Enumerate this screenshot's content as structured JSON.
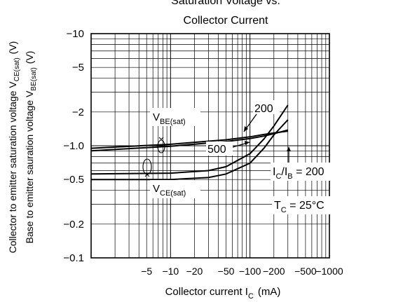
{
  "chart_data": {
    "type": "line",
    "title_line1": "Saturation Voltage vs.",
    "title_line2": "Collector Current",
    "xlabel_main": "Collector current  I",
    "xlabel_sub": "C",
    "xlabel_unit": "(mA)",
    "ylabel_outer": "Collector to emitter saturation voltage  V",
    "ylabel_outer_sub": "CE(sat)",
    "ylabel_outer_unit": "(V)",
    "ylabel_inner": "Base to emitter sauration voltage  V",
    "ylabel_inner_sub": "BE(sat)",
    "ylabel_inner_unit": "(V)",
    "x_scale": "log",
    "y_scale": "log",
    "x_magnitude_range": [
      1,
      1000
    ],
    "y_magnitude_range": [
      0.1,
      10
    ],
    "x_ticks": [
      {
        "v": 5,
        "label": "−5"
      },
      {
        "v": 10,
        "label": "−10"
      },
      {
        "v": 20,
        "label": "−20"
      },
      {
        "v": 50,
        "label": "−50"
      },
      {
        "v": 100,
        "label": "−100"
      },
      {
        "v": 200,
        "label": "−200"
      },
      {
        "v": 500,
        "label": "−500"
      },
      {
        "v": 1000,
        "label": "−1000"
      }
    ],
    "y_ticks": [
      {
        "v": 10,
        "label": "−10"
      },
      {
        "v": 5,
        "label": "−5"
      },
      {
        "v": 2,
        "label": "−2"
      },
      {
        "v": 1,
        "label": "−1.0"
      },
      {
        "v": 0.5,
        "label": "−0.5"
      },
      {
        "v": 0.2,
        "label": "−0.2"
      },
      {
        "v": 0.1,
        "label": "−0.1"
      }
    ],
    "grid": true,
    "series": [
      {
        "group": "VBE(sat)",
        "ratio": "500",
        "x": [
          1,
          10,
          50,
          100,
          150,
          200,
          300
        ],
        "y": [
          0.95,
          1.03,
          1.13,
          1.2,
          1.26,
          1.3,
          1.35
        ]
      },
      {
        "group": "VBE(sat)",
        "ratio": "200",
        "x": [
          1,
          10,
          50,
          100,
          150,
          200,
          300
        ],
        "y": [
          0.9,
          0.99,
          1.09,
          1.16,
          1.22,
          1.28,
          1.38
        ]
      },
      {
        "group": "VCE(sat)",
        "ratio": "500",
        "x": [
          1,
          10,
          30,
          50,
          100,
          150,
          200,
          300
        ],
        "y": [
          0.56,
          0.57,
          0.6,
          0.65,
          0.85,
          1.15,
          1.5,
          2.3
        ]
      },
      {
        "group": "VCE(sat)",
        "ratio": "200",
        "x": [
          1,
          10,
          30,
          50,
          100,
          150,
          200,
          300
        ],
        "y": [
          0.5,
          0.5,
          0.52,
          0.56,
          0.7,
          0.95,
          1.25,
          1.7
        ]
      }
    ],
    "annotations": {
      "vbe_main": "V",
      "vbe_sub": "BE(sat)",
      "vce_main": "V",
      "vce_sub": "CE(sat)",
      "label_200": "200",
      "label_500": "500",
      "ratio_a": "I",
      "ratio_a_sub": "C",
      "ratio_b": "/I",
      "ratio_b_sub": "B",
      "ratio_value": " = 200",
      "temp_main": "T",
      "temp_sub": "C",
      "temp_value": " = 25°C"
    }
  }
}
